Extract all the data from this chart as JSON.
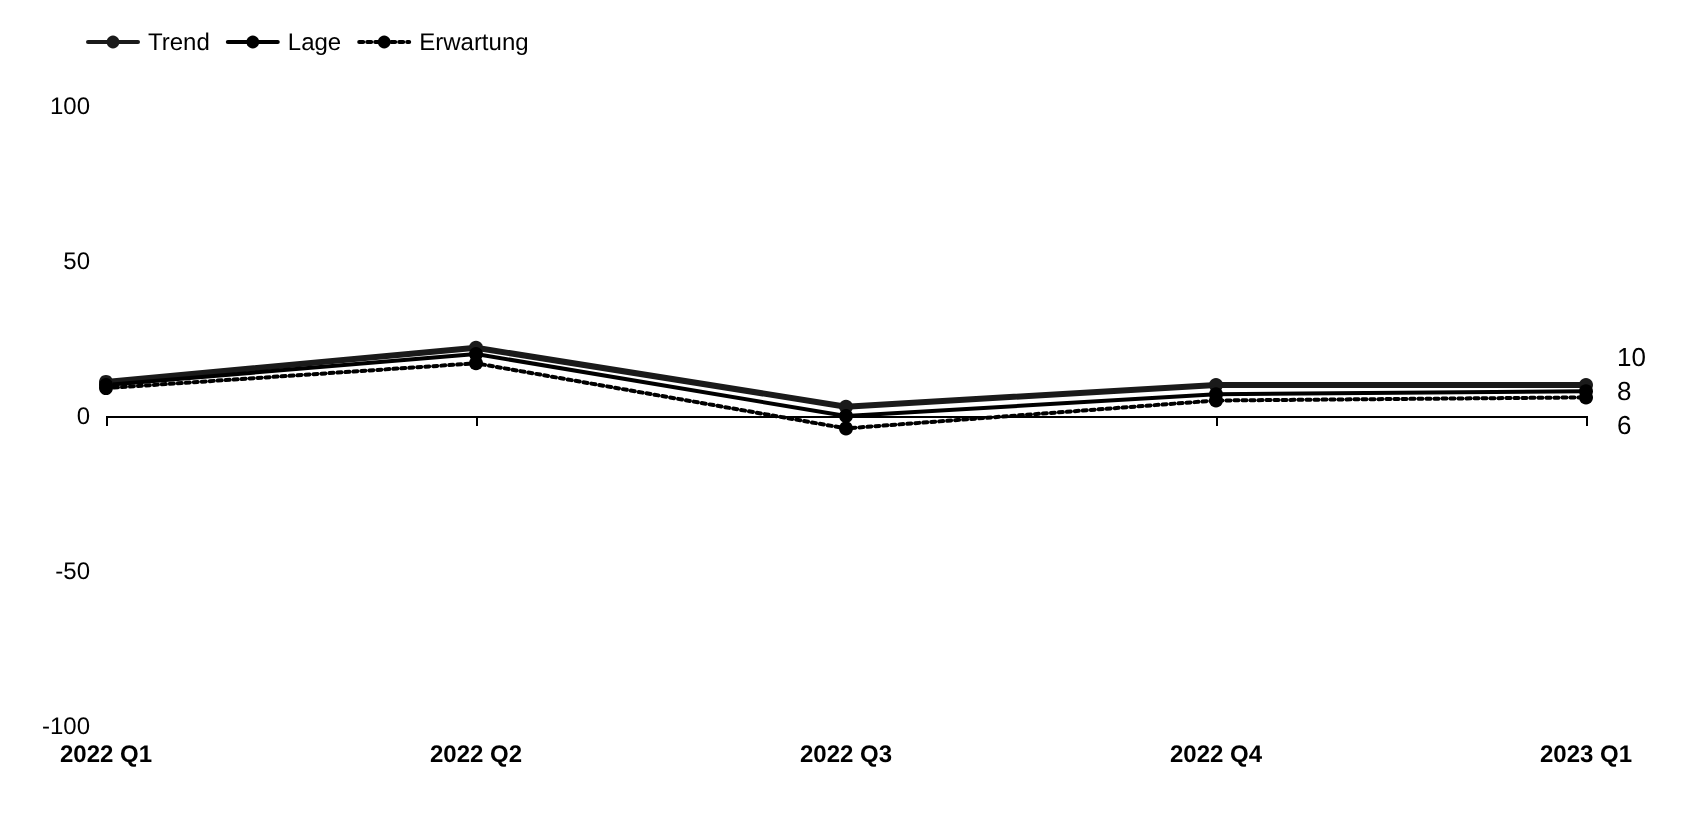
{
  "chart_data": {
    "type": "line",
    "categories": [
      "2022 Q1",
      "2022 Q2",
      "2022 Q3",
      "2022 Q4",
      "2023 Q1"
    ],
    "series": [
      {
        "name": "Trend",
        "color": "#1a1a1a",
        "line_style": "solid",
        "values": [
          11,
          22,
          3,
          10,
          10
        ],
        "value_labels": [
          null,
          null,
          null,
          null,
          "10"
        ]
      },
      {
        "name": "Lage",
        "color": "#000000",
        "line_style": "solid",
        "values": [
          10,
          20,
          0,
          7,
          8
        ],
        "value_labels": [
          null,
          null,
          null,
          null,
          "8"
        ]
      },
      {
        "name": "Erwartung",
        "color": "#000000",
        "line_style": "dotted",
        "values": [
          9,
          17,
          -4,
          5,
          6
        ],
        "value_labels": [
          null,
          null,
          null,
          null,
          "6"
        ]
      }
    ],
    "ylim": [
      -100,
      100
    ],
    "yticks": [
      -100,
      -50,
      0,
      50,
      100
    ],
    "grid": false,
    "legend": "top left",
    "marker": "circle",
    "ref_lines": [
      {
        "axis": "y",
        "value": 0,
        "color": "#000000"
      }
    ]
  }
}
